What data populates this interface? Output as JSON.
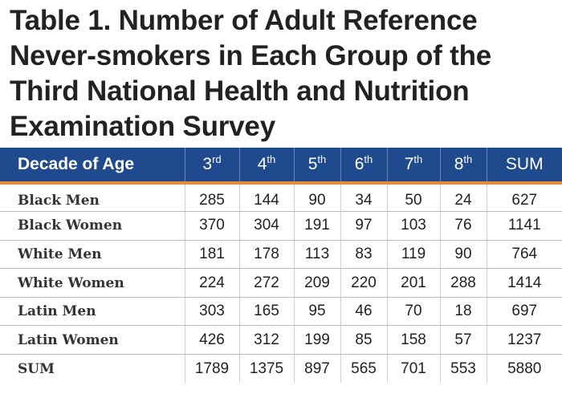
{
  "title": "Table 1. Number of Adult Reference Never-smokers in Each Group of the Third National Health and Nutrition Examination Survey",
  "table": {
    "corner_header": "Decade of Age",
    "columns": [
      {
        "num": "3",
        "suffix": "rd"
      },
      {
        "num": "4",
        "suffix": "th"
      },
      {
        "num": "5",
        "suffix": "th"
      },
      {
        "num": "6",
        "suffix": "th"
      },
      {
        "num": "7",
        "suffix": "th"
      },
      {
        "num": "8",
        "suffix": "th"
      },
      {
        "num": "SUM",
        "suffix": ""
      }
    ],
    "rows": [
      {
        "label": "Black Men",
        "values": [
          "285",
          "144",
          "90",
          "34",
          "50",
          "24",
          "627"
        ]
      },
      {
        "label": "Black Women",
        "values": [
          "370",
          "304",
          "191",
          "97",
          "103",
          "76",
          "1141"
        ]
      },
      {
        "label": "White Men",
        "values": [
          "181",
          "178",
          "113",
          "83",
          "119",
          "90",
          "764"
        ]
      },
      {
        "label": "White Women",
        "values": [
          "224",
          "272",
          "209",
          "220",
          "201",
          "288",
          "1414"
        ]
      },
      {
        "label": "Latin Men",
        "values": [
          "303",
          "165",
          "95",
          "46",
          "70",
          "18",
          "697"
        ]
      },
      {
        "label": "Latin Women",
        "values": [
          "426",
          "312",
          "199",
          "85",
          "158",
          "57",
          "1237"
        ]
      },
      {
        "label": "SUM",
        "values": [
          "1789",
          "1375",
          "897",
          "565",
          "701",
          "553",
          "5880"
        ]
      }
    ]
  },
  "colors": {
    "header_bg": "#1f4b8e",
    "header_rule": "#e58a3a",
    "title_text": "#222222"
  }
}
